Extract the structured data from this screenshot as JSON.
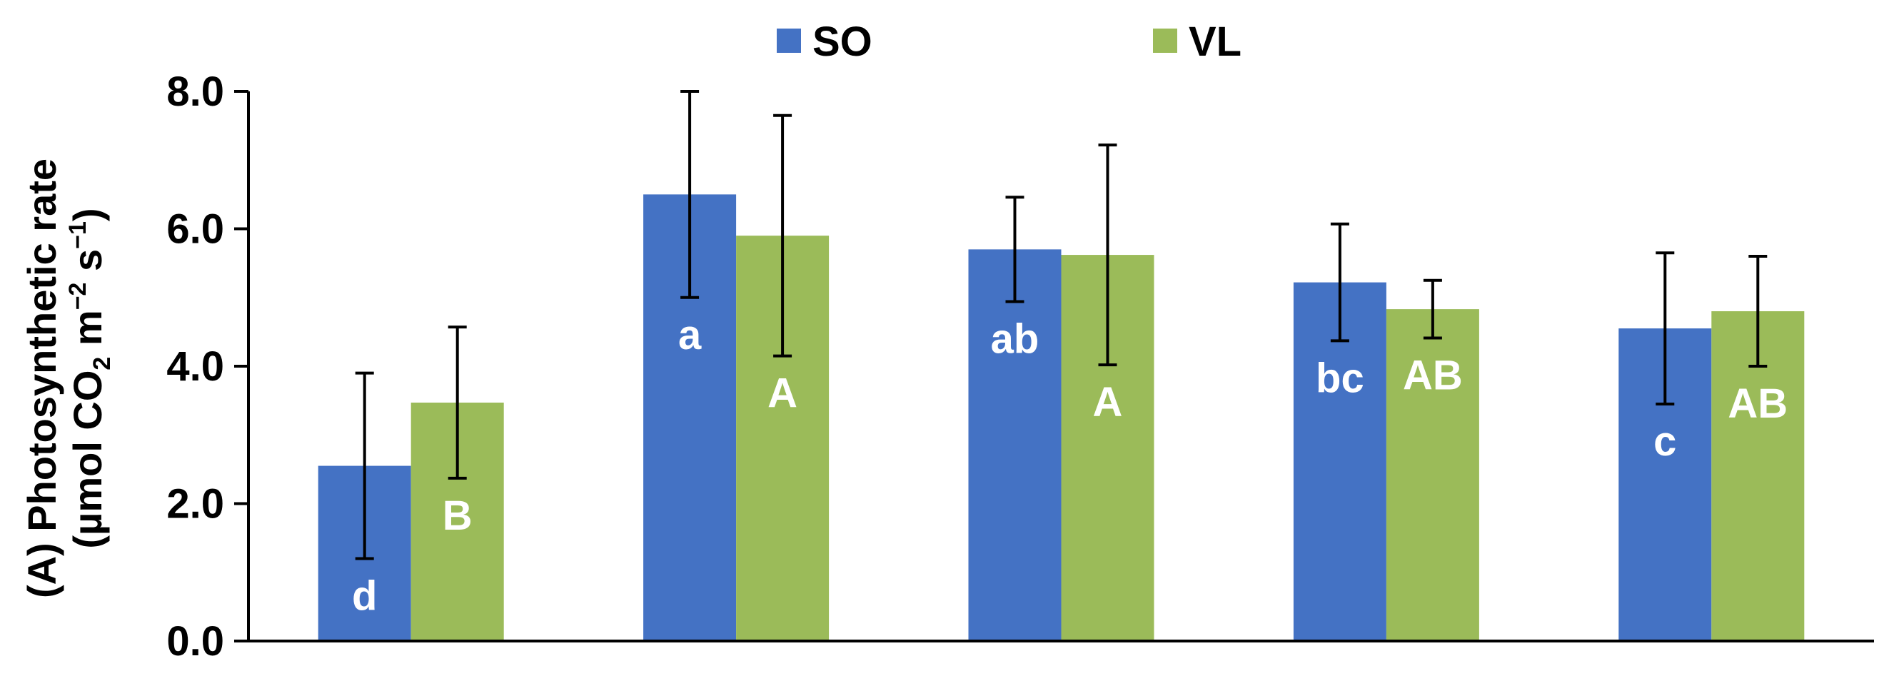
{
  "chart_data": {
    "type": "bar",
    "title": "",
    "xlabel": "",
    "ylabel": {
      "line1": "(A) Photosynthetic rate",
      "line2_parts": [
        "(µmol CO",
        "2",
        " m",
        "−2",
        " s",
        "−1",
        ")"
      ]
    },
    "ylim": [
      0,
      8
    ],
    "yticks": [
      "0.0",
      "2.0",
      "4.0",
      "6.0",
      "8.0"
    ],
    "ytick_values": [
      0,
      2,
      4,
      6,
      8
    ],
    "categories": [
      "",
      "",
      "",
      "",
      ""
    ],
    "legend_position": "top-center",
    "colors": {
      "SO": "#4472C4",
      "VL": "#9BBB59",
      "axis": "#000000",
      "letters": "#ffffff"
    },
    "series": [
      {
        "name": "SO",
        "values": [
          2.55,
          6.5,
          5.7,
          5.22,
          4.55
        ],
        "errors": [
          1.35,
          1.5,
          0.76,
          0.85,
          1.1
        ],
        "letters": [
          "d",
          "a",
          "ab",
          "bc",
          "c"
        ]
      },
      {
        "name": "VL",
        "values": [
          3.47,
          5.9,
          5.62,
          4.83,
          4.8
        ],
        "errors": [
          1.1,
          1.75,
          1.6,
          0.42,
          0.8
        ],
        "letters": [
          "B",
          "A",
          "A",
          "AB",
          "AB"
        ]
      }
    ]
  }
}
